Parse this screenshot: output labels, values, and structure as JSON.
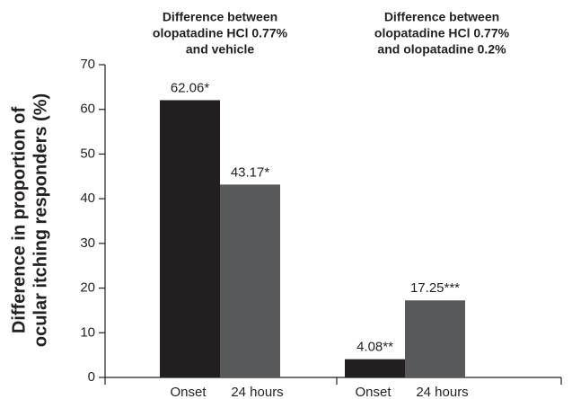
{
  "chart_data": {
    "type": "bar",
    "group_titles": [
      [
        "Difference between",
        "olopatadine HCl 0.77%",
        "and vehicle"
      ],
      [
        "Difference between",
        "olopatadine HCl 0.77%",
        "and olopatadine 0.2%"
      ]
    ],
    "y_label": [
      "Difference in proportion of",
      "ocular itching responders (%)"
    ],
    "series": [
      {
        "name": "Onset",
        "color": "#231f20",
        "values": [
          62.06,
          4.08
        ],
        "value_labels": [
          "62.06*",
          "4.08**"
        ]
      },
      {
        "name": "24 hours",
        "color": "#58595b",
        "values": [
          43.17,
          17.25
        ],
        "value_labels": [
          "43.17*",
          "17.25***"
        ]
      }
    ],
    "ylim": [
      0,
      70
    ],
    "yticks": [
      0,
      10,
      20,
      30,
      40,
      50,
      60,
      70
    ]
  }
}
